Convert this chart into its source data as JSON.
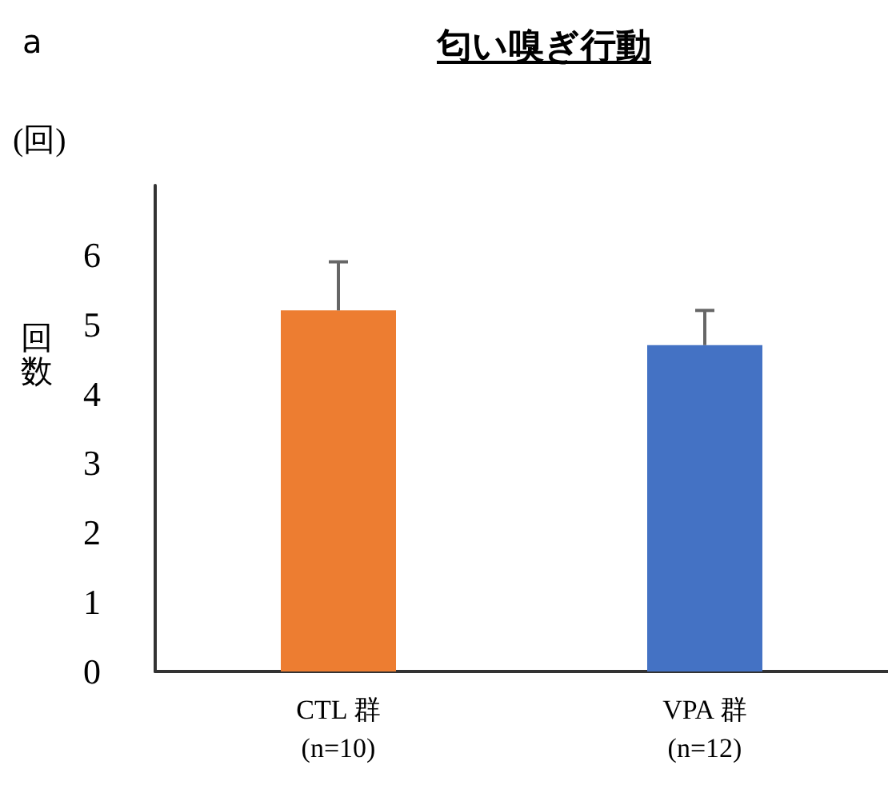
{
  "chart_data": {
    "type": "bar",
    "title": "匂い嗅ぎ行動",
    "ylabel": "回数",
    "annotations": [
      "a",
      "(回)"
    ],
    "categories": [
      "CTL 群\n(n=10)",
      "VPA 群\n(n=12)"
    ],
    "values": [
      5.2,
      4.7
    ],
    "colors": [
      "#ed7d31",
      "#4472c4"
    ],
    "errors": [
      [
        5.2,
        5.9
      ],
      [
        4.7,
        5.2
      ]
    ],
    "ylim": [
      0,
      7
    ],
    "yticks": [
      0,
      1,
      2,
      3,
      4,
      5,
      6
    ],
    "grid": false
  }
}
